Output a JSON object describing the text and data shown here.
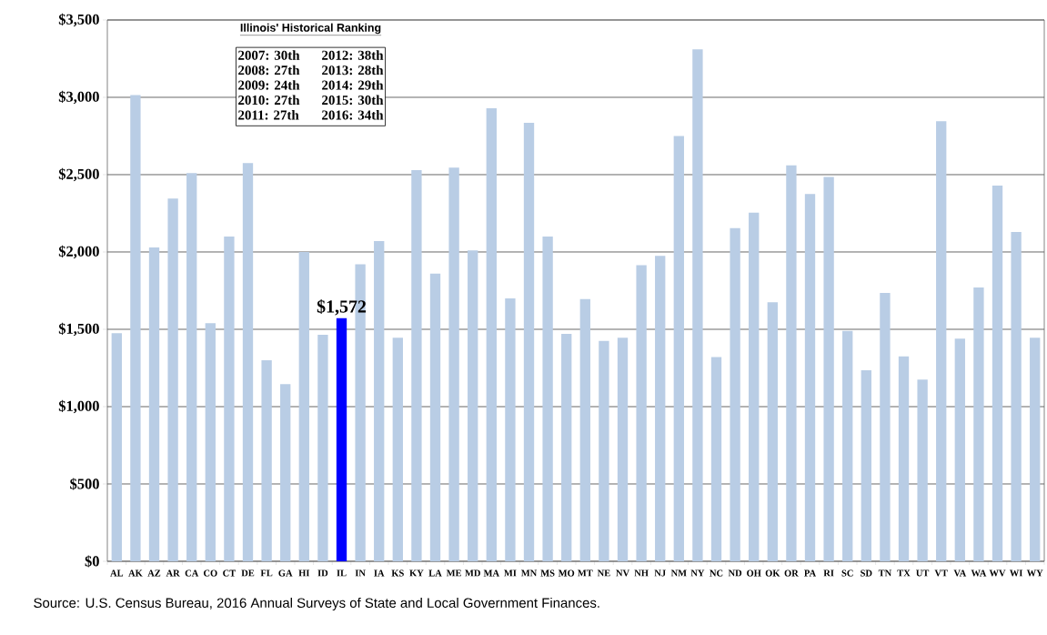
{
  "chart_data": {
    "type": "bar",
    "categories": [
      "AL",
      "AK",
      "AZ",
      "AR",
      "CA",
      "CO",
      "CT",
      "DE",
      "FL",
      "GA",
      "HI",
      "ID",
      "IL",
      "IN",
      "IA",
      "KS",
      "KY",
      "LA",
      "ME",
      "MD",
      "MA",
      "MI",
      "MN",
      "MS",
      "MO",
      "MT",
      "NE",
      "NV",
      "NH",
      "NJ",
      "NM",
      "NY",
      "NC",
      "ND",
      "OH",
      "OK",
      "OR",
      "PA",
      "RI",
      "SC",
      "SD",
      "TN",
      "TX",
      "UT",
      "VT",
      "VA",
      "WA",
      "WV",
      "WI",
      "WY"
    ],
    "values": [
      1475,
      3015,
      2030,
      2345,
      2510,
      1540,
      2100,
      2575,
      1300,
      1145,
      2000,
      1465,
      1572,
      1920,
      2070,
      1445,
      2530,
      1860,
      2545,
      2010,
      2930,
      1700,
      2835,
      2100,
      1470,
      1695,
      1425,
      1445,
      1915,
      1975,
      2750,
      3310,
      1320,
      2155,
      2255,
      1675,
      2560,
      2375,
      2485,
      1490,
      1235,
      1735,
      1325,
      1175,
      2845,
      1440,
      1770,
      2430,
      2130,
      1445
    ],
    "colors": [
      "#b9cde5",
      "#b9cde5",
      "#b9cde5",
      "#b9cde5",
      "#b9cde5",
      "#b9cde5",
      "#b9cde5",
      "#b9cde5",
      "#b9cde5",
      "#b9cde5",
      "#b9cde5",
      "#b9cde5",
      "#0000ff",
      "#b9cde5",
      "#b9cde5",
      "#b9cde5",
      "#b9cde5",
      "#b9cde5",
      "#b9cde5",
      "#b9cde5",
      "#b9cde5",
      "#b9cde5",
      "#b9cde5",
      "#b9cde5",
      "#b9cde5",
      "#b9cde5",
      "#b9cde5",
      "#b9cde5",
      "#b9cde5",
      "#b9cde5",
      "#b9cde5",
      "#b9cde5",
      "#b9cde5",
      "#b9cde5",
      "#b9cde5",
      "#b9cde5",
      "#b9cde5",
      "#b9cde5",
      "#b9cde5",
      "#b9cde5",
      "#b9cde5",
      "#b9cde5",
      "#b9cde5",
      "#b9cde5",
      "#b9cde5",
      "#b9cde5",
      "#b9cde5",
      "#b9cde5",
      "#b9cde5",
      "#b9cde5"
    ],
    "value_labels": [
      null,
      null,
      null,
      null,
      null,
      null,
      null,
      null,
      null,
      null,
      null,
      null,
      "$1,572",
      null,
      null,
      null,
      null,
      null,
      null,
      null,
      null,
      null,
      null,
      null,
      null,
      null,
      null,
      null,
      null,
      null,
      null,
      null,
      null,
      null,
      null,
      null,
      null,
      null,
      null,
      null,
      null,
      null,
      null,
      null,
      null,
      null,
      null,
      null,
      null,
      null
    ],
    "ylim": [
      0,
      3500
    ],
    "yticks": [
      {
        "value": 0,
        "label": "$0"
      },
      {
        "value": 500,
        "label": "$500"
      },
      {
        "value": 1000,
        "label": "$1,000"
      },
      {
        "value": 1500,
        "label": "$1,500"
      },
      {
        "value": 2000,
        "label": "$2,000"
      },
      {
        "value": 2500,
        "label": "$2,500"
      },
      {
        "value": 3000,
        "label": "$3,000"
      },
      {
        "value": 3500,
        "label": "$3,500"
      }
    ],
    "grid": "y",
    "annotations": [
      "Illinois' Historical Ranking",
      "2007:  30th",
      "2012:  38th",
      "2008:  27th",
      "2013:  28th",
      "2009:  24th",
      "2014:  29th",
      "2010:  27th",
      "2015:  30th",
      "2011:  27th",
      "2016:  34th",
      "Source: U.S. Census Bureau,  2016 Annual Surveys of State and Local Government Finances."
    ]
  }
}
